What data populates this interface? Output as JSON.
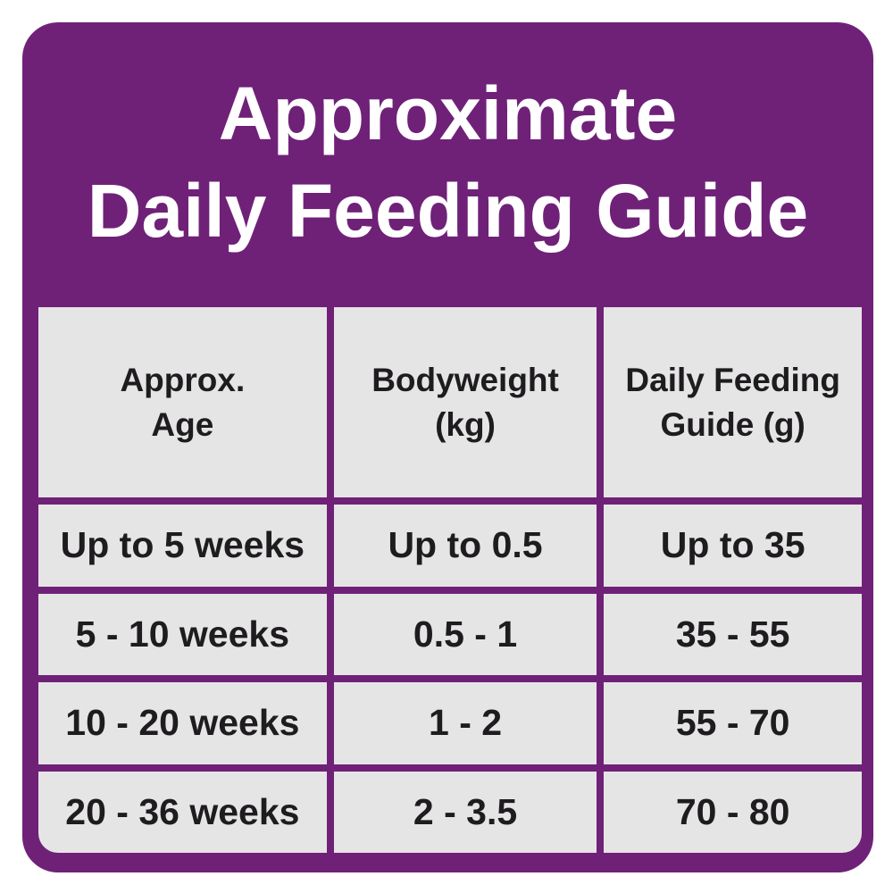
{
  "title": {
    "line1": "Approximate",
    "line2": "Daily Feeding Guide"
  },
  "table": {
    "columns": [
      "Approx.\nAge",
      "Bodyweight\n(kg)",
      "Daily Feeding\nGuide (g)"
    ],
    "rows": [
      [
        "Up to 5 weeks",
        "Up to 0.5",
        "Up to 35"
      ],
      [
        "5 - 10 weeks",
        "0.5 - 1",
        "35 - 55"
      ],
      [
        "10 - 20 weeks",
        "1 - 2",
        "55 - 70"
      ],
      [
        "20 - 36 weeks",
        "2 - 3.5",
        "70 - 80"
      ]
    ]
  },
  "chart_data": {
    "type": "table",
    "title": "Approximate Daily Feeding Guide",
    "columns": [
      "Approx. Age",
      "Bodyweight (kg)",
      "Daily Feeding Guide (g)"
    ],
    "rows": [
      [
        "Up to 5 weeks",
        "Up to 0.5",
        "Up to 35"
      ],
      [
        "5 - 10 weeks",
        "0.5 - 1",
        "35 - 55"
      ],
      [
        "10 - 20 weeks",
        "1 - 2",
        "55 - 70"
      ],
      [
        "20 - 36 weeks",
        "2 - 3.5",
        "70 - 80"
      ]
    ]
  },
  "colors": {
    "card_purple": "#6F2178",
    "cell_gray": "#E6E5E6",
    "text_dark": "#1E1C1E",
    "title_white": "#FFFFFF",
    "page_background": "#FFFFFF"
  }
}
